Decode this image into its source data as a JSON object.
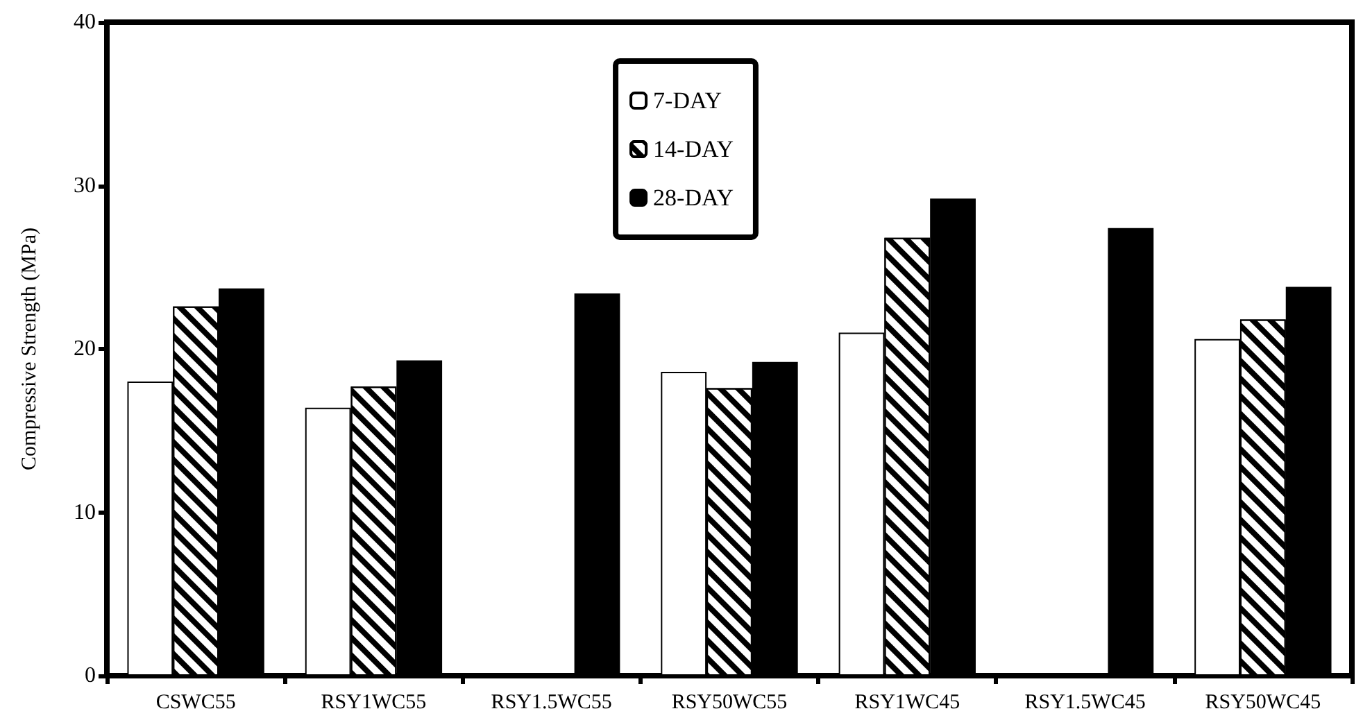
{
  "chart_data": {
    "type": "bar",
    "ylabel": "Compressive Strength (MPa)",
    "categories": [
      "CSWC55",
      "RSY1WC55",
      "RSY1.5WC55",
      "RSY50WC55",
      "RSY1WC45",
      "RSY1.5WC45",
      "RSY50WC45"
    ],
    "series": [
      {
        "name": "7-DAY",
        "color": "#ffffff",
        "values": [
          18.0,
          16.4,
          null,
          18.6,
          21.0,
          null,
          20.6
        ]
      },
      {
        "name": "14-DAY",
        "color": "#ffffff",
        "values": [
          22.6,
          17.7,
          null,
          17.6,
          26.8,
          null,
          21.8
        ]
      },
      {
        "name": "28-DAY",
        "color": "#000000",
        "values": [
          23.7,
          19.3,
          23.4,
          19.2,
          29.2,
          27.4,
          23.8
        ]
      }
    ],
    "ylim": [
      0,
      40
    ],
    "yticks": [
      0,
      10,
      20,
      30,
      40
    ],
    "grid": false,
    "legend": "top"
  }
}
